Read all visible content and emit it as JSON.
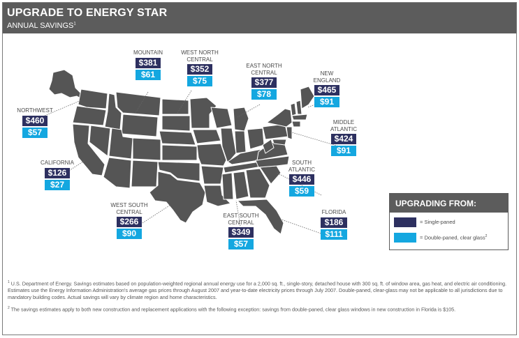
{
  "header": {
    "title": "UPGRADE TO ENERGY STAR",
    "subtitle": "ANNUAL SAVINGS",
    "subtitle_note": "1"
  },
  "colors": {
    "single_paned": "#2d3060",
    "double_paned": "#14a7e0",
    "map_fill": "#555555",
    "header_bg": "#5c5c5c"
  },
  "regions": {
    "northwest": {
      "name": "NORTHWEST",
      "single": "$460",
      "double": "$57"
    },
    "california": {
      "name": "CALIFORNIA",
      "single": "$126",
      "double": "$27"
    },
    "mountain": {
      "name": "MOUNTAIN",
      "single": "$381",
      "double": "$61"
    },
    "west_north_central": {
      "name_line1": "WEST NORTH",
      "name_line2": "CENTRAL",
      "single": "$352",
      "double": "$75"
    },
    "east_north_central": {
      "name_line1": "EAST NORTH",
      "name_line2": "CENTRAL",
      "single": "$377",
      "double": "$78"
    },
    "new_england": {
      "name_line1": "NEW",
      "name_line2": "ENGLAND",
      "single": "$465",
      "double": "$91"
    },
    "middle_atlantic": {
      "name_line1": "MIDDLE",
      "name_line2": "ATLANTIC",
      "single": "$424",
      "double": "$91"
    },
    "south_atlantic": {
      "name_line1": "SOUTH",
      "name_line2": "ATLANTIC",
      "single": "$446",
      "double": "$59"
    },
    "west_south_central": {
      "name_line1": "WEST SOUTH",
      "name_line2": "CENTRAL",
      "single": "$266",
      "double": "$90"
    },
    "east_south_central": {
      "name_line1": "EAST SOUTH",
      "name_line2": "CENTRAL",
      "single": "$349",
      "double": "$57"
    },
    "florida": {
      "name": "FLORIDA",
      "single": "$186",
      "double": "$111"
    }
  },
  "legend": {
    "title": "UPGRADING FROM:",
    "single_label": "= Single-paned",
    "double_label": "= Double-paned, clear glass",
    "double_note": "2"
  },
  "footnotes": {
    "note1_mark": "1",
    "note1": "U.S. Department of Energy. Savings estimates based on population-weighted regional annual energy use for a 2,000 sq. ft., single-story, detached house with 300 sq. ft. of window area, gas heat, and electric air conditioning. Estimates use the Energy Information Administration's average gas prices through August 2007 and year-to-date electricity prices through July 2007. Double-paned, clear-glass may not be applicable to all jurisdictions due to mandatory building codes. Actual savings will vary by climate region and home characteristics.",
    "note2_mark": "2",
    "note2": "The savings estimates apply to both new construction and replacement applications with the following exception: savings from double-paned, clear glass windows in new construction in Florida is $105."
  }
}
